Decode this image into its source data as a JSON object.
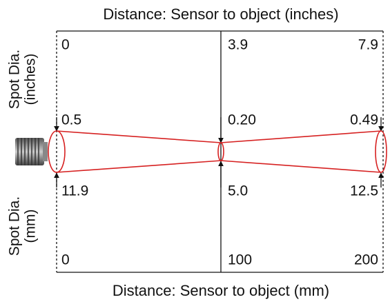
{
  "top_axis": {
    "title": "Distance: Sensor to object (inches)",
    "labels": [
      "0",
      "3.9",
      "7.9"
    ]
  },
  "spot_inches": {
    "title_lines": [
      "Spot Dia.",
      "(inches)"
    ],
    "values": [
      "0.5",
      "0.20",
      "0.49"
    ]
  },
  "spot_mm": {
    "title_lines": [
      "Spot Dia.",
      "(mm)"
    ],
    "values": [
      "11.9",
      "5.0",
      "12.5"
    ]
  },
  "bottom_axis": {
    "title": "Distance: Sensor to object (mm)",
    "labels": [
      "0",
      "100",
      "200"
    ]
  }
}
